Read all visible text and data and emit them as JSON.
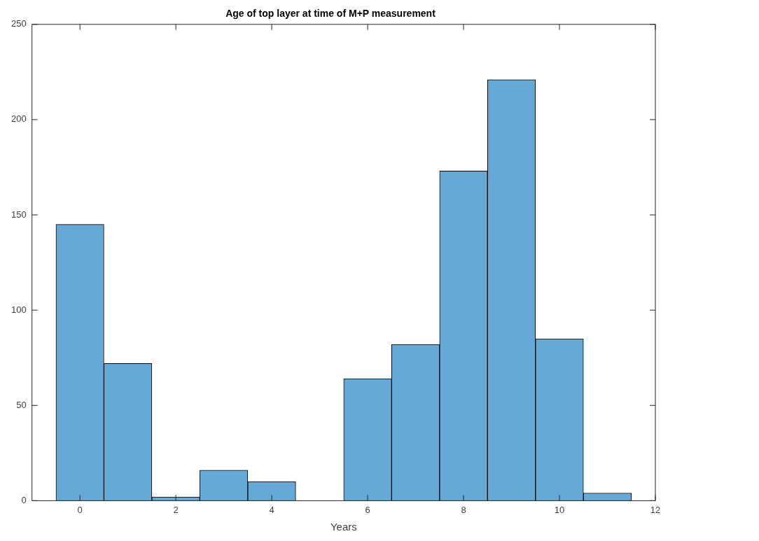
{
  "chart_data": {
    "type": "histogram",
    "title": "Age of top layer at time of M+P measurement",
    "xlabel": "Years",
    "bins": [
      -0.5,
      0.5,
      1.5,
      2.5,
      3.5,
      4.5,
      5.5,
      6.5,
      7.5,
      8.5,
      9.5,
      10.5,
      11.5
    ],
    "values": [
      145,
      72,
      2,
      16,
      10,
      0,
      64,
      82,
      173,
      221,
      85,
      4
    ],
    "color": "#65a9d7",
    "xlim": [
      -1,
      12
    ],
    "xticks": [
      0,
      2,
      4,
      6,
      8,
      10,
      12
    ],
    "ylim": [
      0,
      250
    ],
    "yticks": [
      0,
      50,
      100,
      150,
      200,
      250
    ],
    "grid": false,
    "legend": false
  }
}
